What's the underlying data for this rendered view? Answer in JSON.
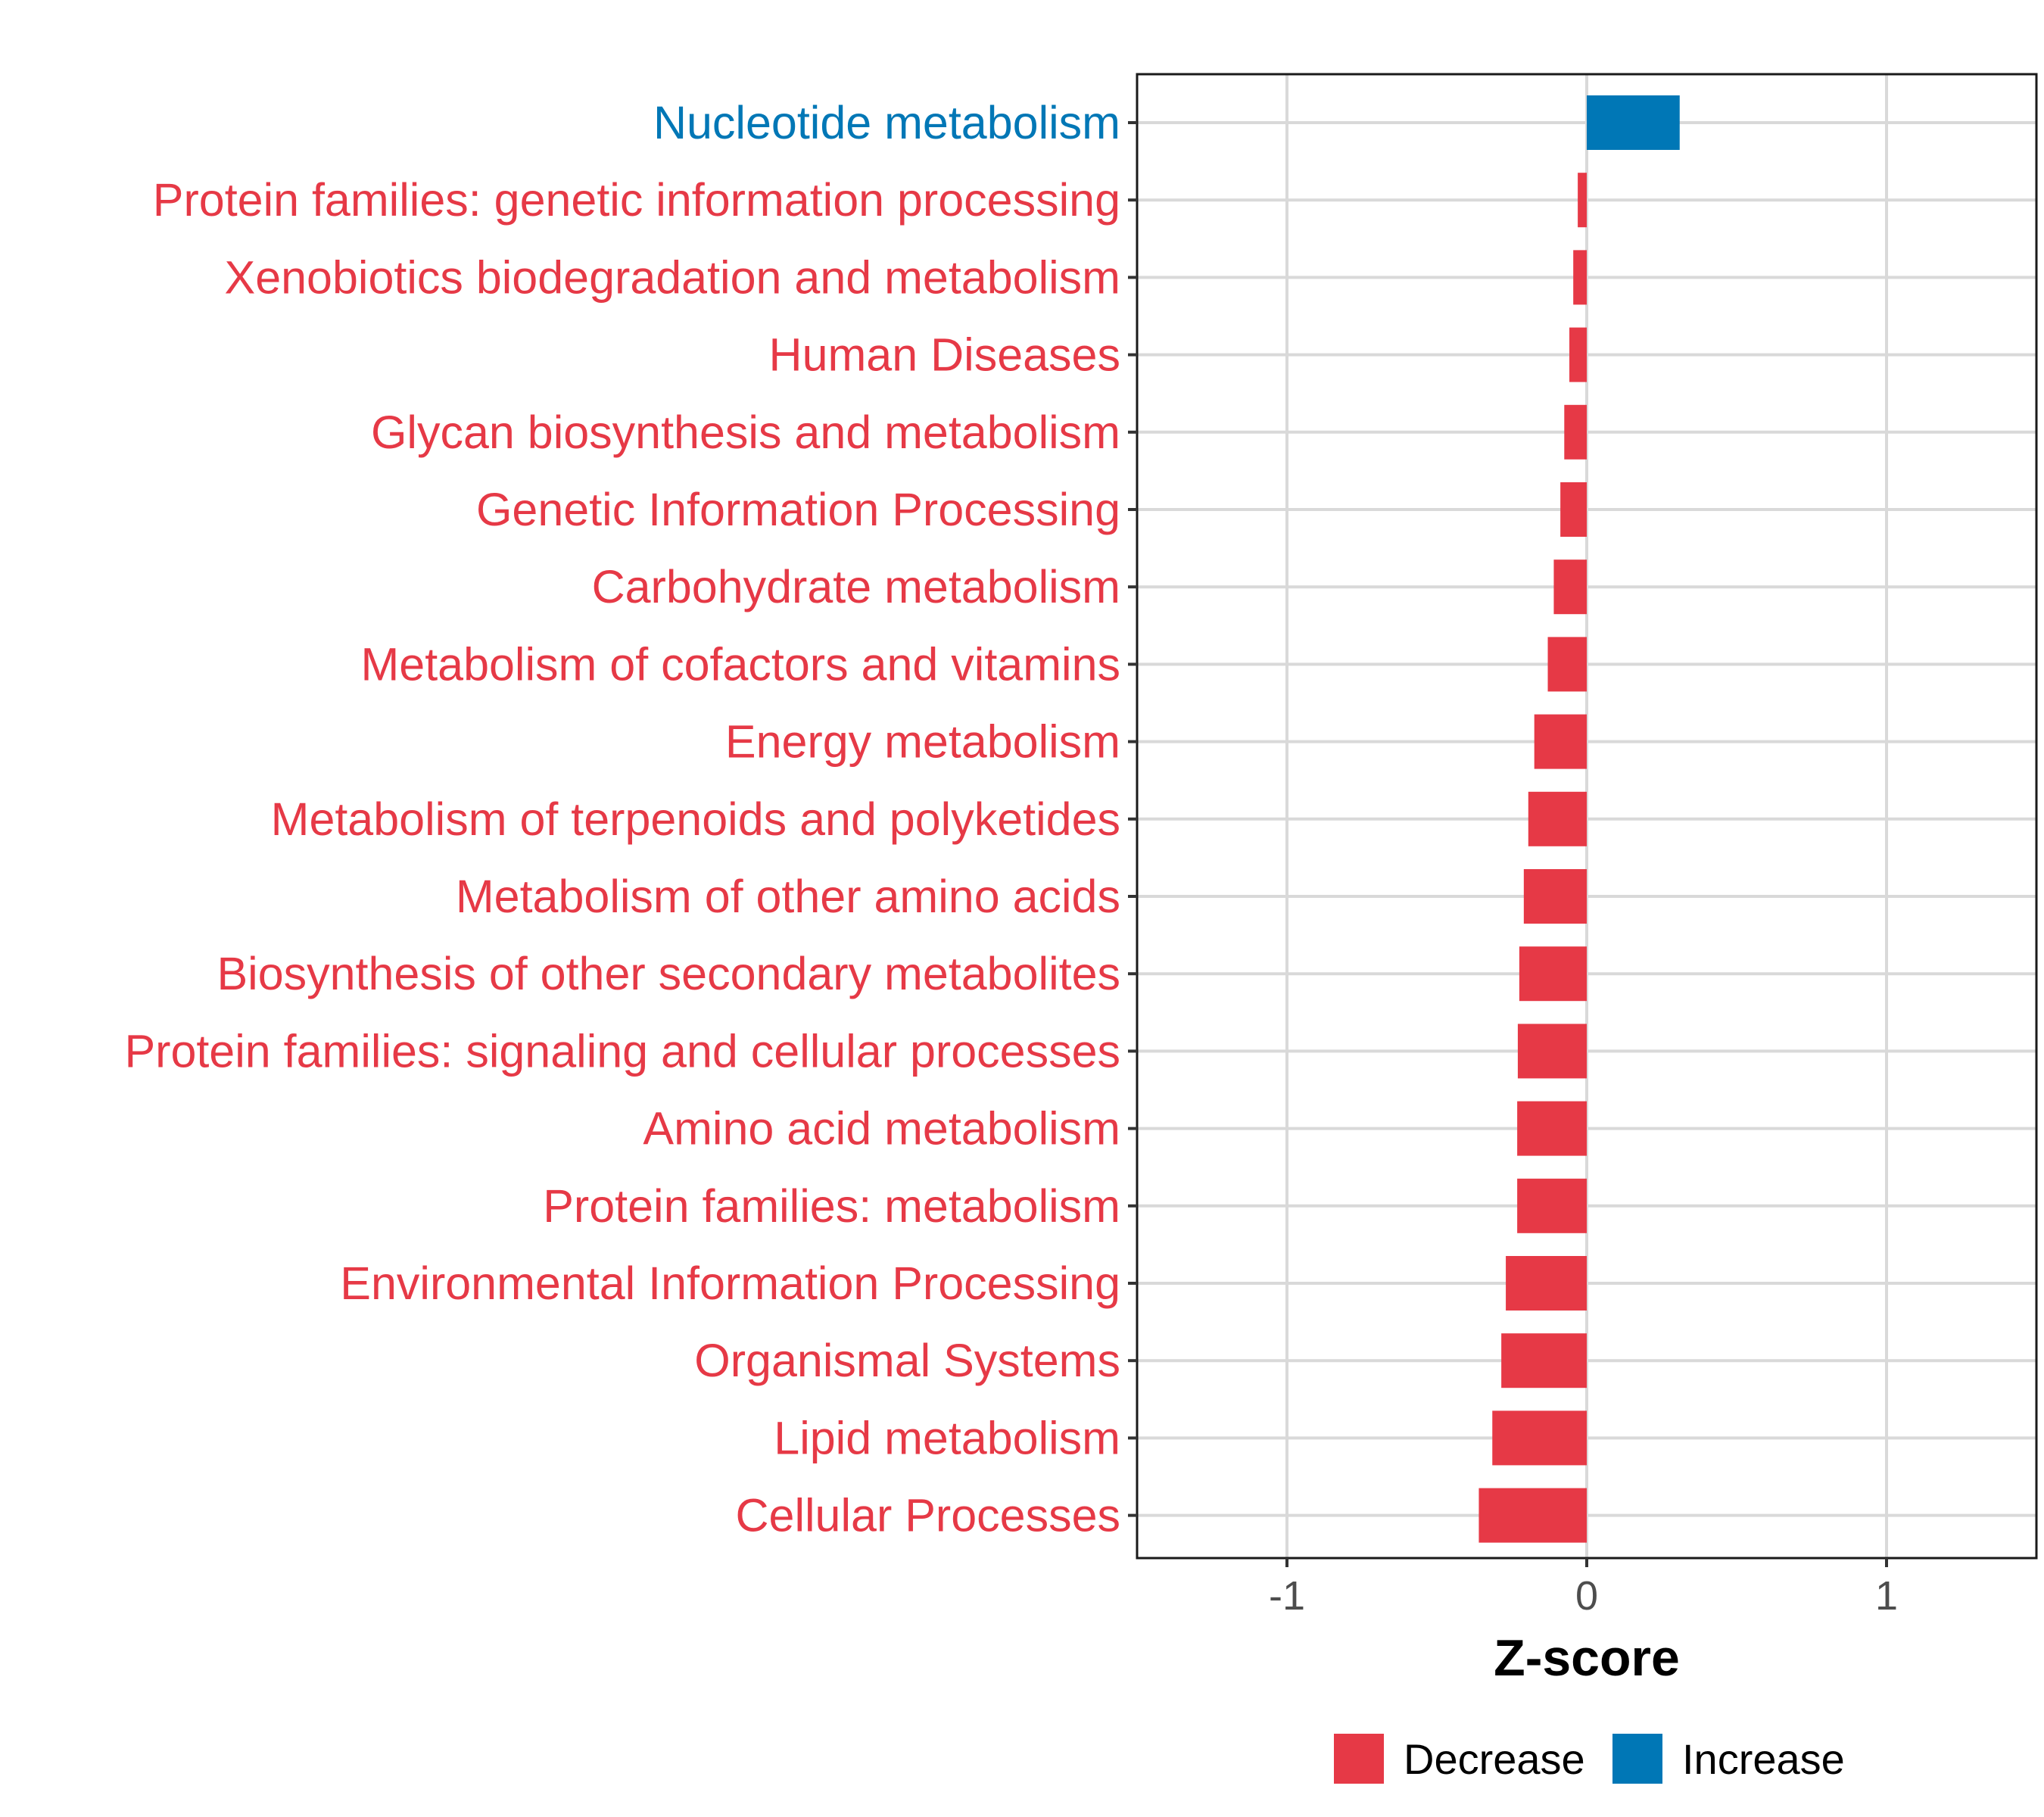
{
  "chart_data": {
    "type": "bar",
    "orientation": "horizontal",
    "title": "",
    "xlabel": "Z-score",
    "ylabel": "",
    "xlim": [
      -1.5,
      1.5
    ],
    "xticks": [
      -1,
      0,
      1
    ],
    "xtick_labels": [
      "-1",
      "0",
      "1"
    ],
    "grid": true,
    "legend": {
      "position": "bottom",
      "entries": [
        {
          "name": "Decrease",
          "color": "#e63946"
        },
        {
          "name": "Increase",
          "color": "#0077b6"
        }
      ]
    },
    "categories": [
      "Nucleotide metabolism",
      "Protein families: genetic information processing",
      "Xenobiotics biodegradation and metabolism",
      "Human Diseases",
      "Glycan biosynthesis and metabolism",
      "Genetic Information Processing",
      "Carbohydrate metabolism",
      "Metabolism of cofactors and vitamins",
      "Energy metabolism",
      "Metabolism of terpenoids and polyketides",
      "Metabolism of other amino acids",
      "Biosynthesis of other secondary metabolites",
      "Protein families: signaling and cellular processes",
      "Amino acid metabolism",
      "Protein families: metabolism",
      "Environmental Information Processing",
      "Organismal Systems",
      "Lipid metabolism",
      "Cellular Processes"
    ],
    "values": [
      0.31,
      -0.03,
      -0.045,
      -0.058,
      -0.075,
      -0.088,
      -0.11,
      -0.13,
      -0.175,
      -0.195,
      -0.21,
      -0.225,
      -0.23,
      -0.232,
      -0.232,
      -0.27,
      -0.285,
      -0.315,
      -0.36
    ],
    "groups": [
      "Increase",
      "Decrease",
      "Decrease",
      "Decrease",
      "Decrease",
      "Decrease",
      "Decrease",
      "Decrease",
      "Decrease",
      "Decrease",
      "Decrease",
      "Decrease",
      "Decrease",
      "Decrease",
      "Decrease",
      "Decrease",
      "Decrease",
      "Decrease",
      "Decrease"
    ],
    "colors": {
      "Decrease": "#e63946",
      "Increase": "#0077b6",
      "grid": "#d9d9d9",
      "panel_border": "#1a1a1a",
      "tick_text": "#4d4d4d"
    }
  }
}
